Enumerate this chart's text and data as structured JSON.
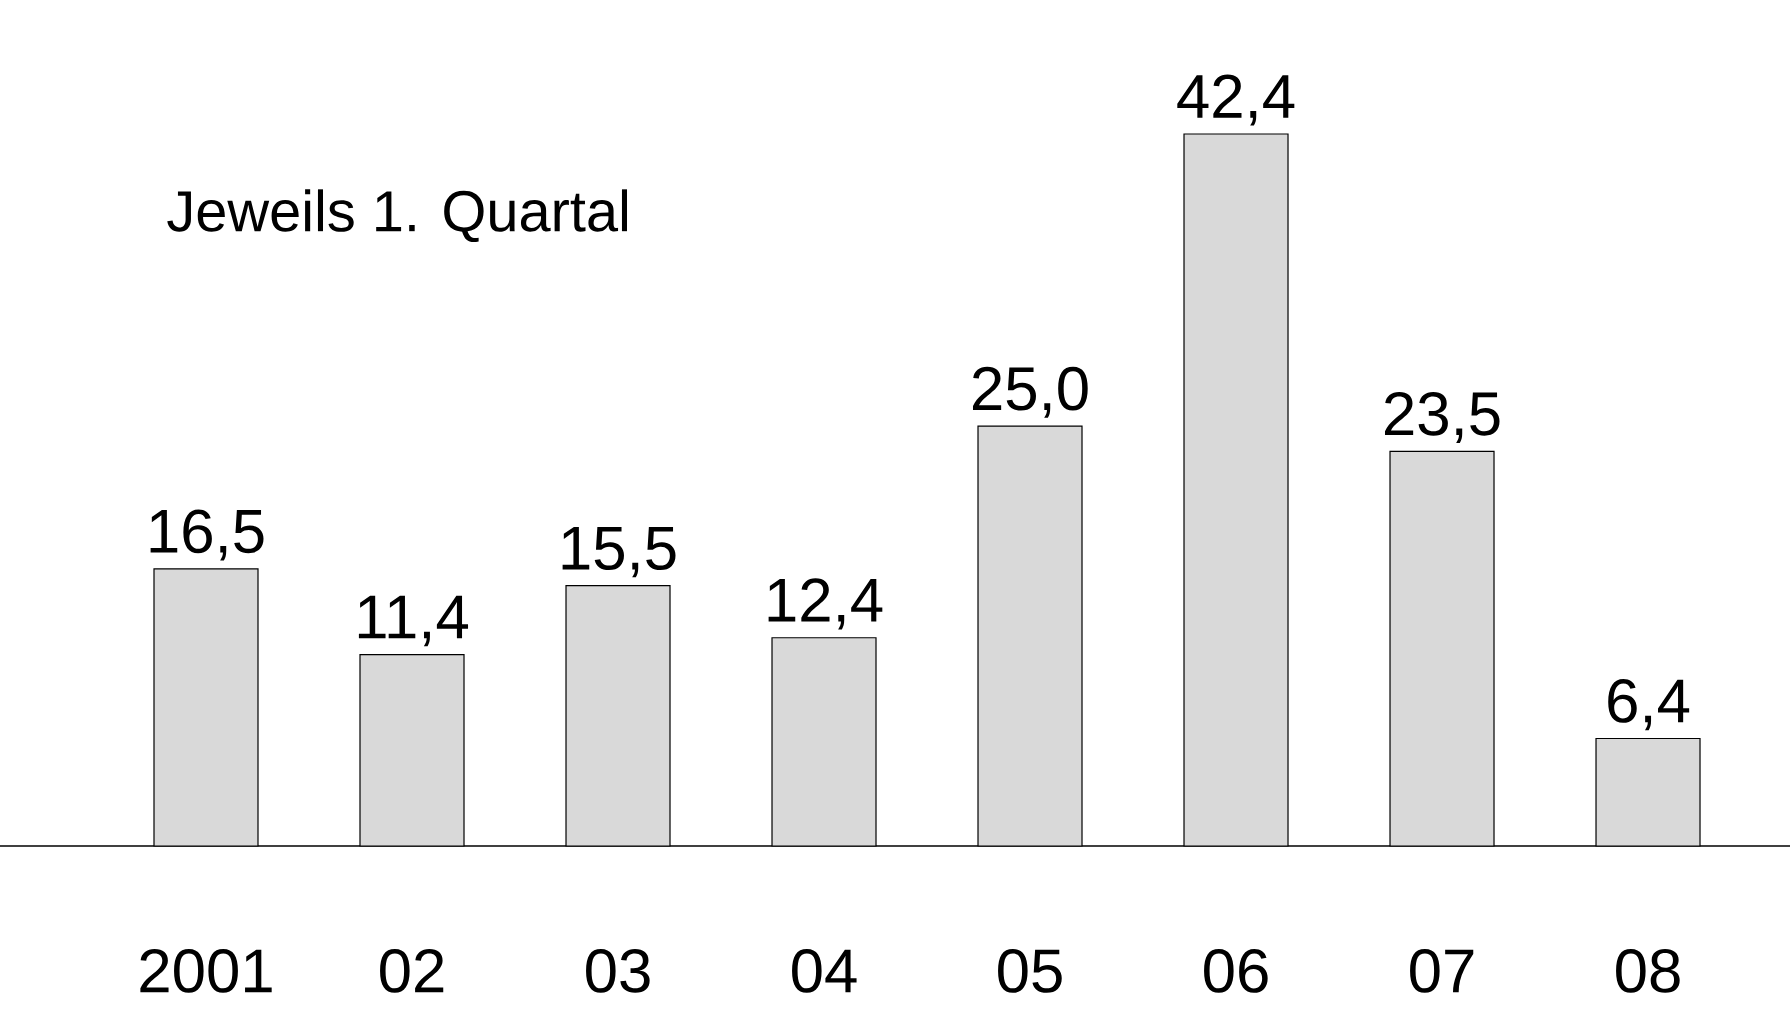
{
  "chart_data": {
    "type": "bar",
    "title": "Jeweils 1. Quartal",
    "categories": [
      "2001",
      "02",
      "03",
      "04",
      "05",
      "06",
      "07",
      "08"
    ],
    "values": [
      16.5,
      11.4,
      15.5,
      12.4,
      25.0,
      42.4,
      23.5,
      6.4
    ],
    "value_labels": [
      "16,5",
      "11,4",
      "15,5",
      "12,4",
      "25,0",
      "42,4",
      "23,5",
      "6,4"
    ],
    "color": "#d9d9d9"
  }
}
